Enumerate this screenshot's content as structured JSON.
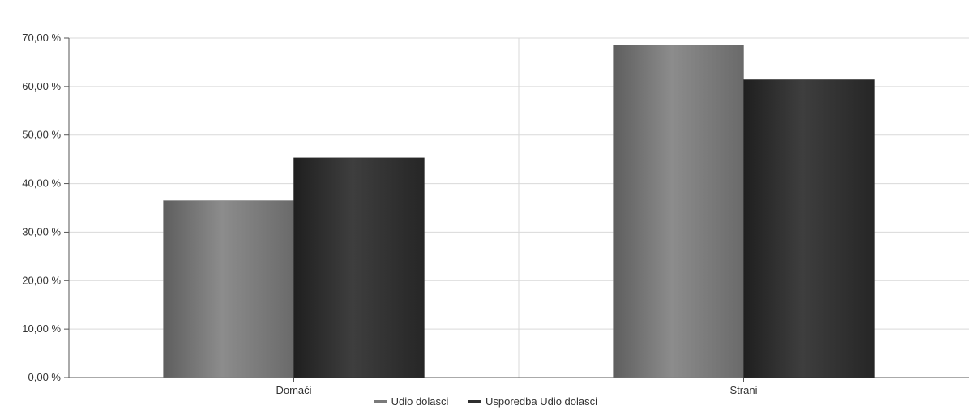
{
  "chart_data": {
    "type": "bar",
    "categories": [
      "Domaći",
      "Strani"
    ],
    "series": [
      {
        "name": "Udio dolasci",
        "values": [
          36.5,
          68.6
        ],
        "color": "#7a7a7a"
      },
      {
        "name": "Usporedba Udio dolasci",
        "values": [
          45.3,
          61.4
        ],
        "color": "#2e2e2e"
      }
    ],
    "ylim": [
      0,
      70
    ],
    "yticks": [
      0,
      10,
      20,
      30,
      40,
      50,
      60,
      70
    ],
    "ytick_labels": [
      "0,00 %",
      "10,00 %",
      "20,00 %",
      "30,00 %",
      "40,00 %",
      "50,00 %",
      "60,00 %",
      "70,00 %"
    ],
    "grid": true,
    "legend_position": "bottom"
  }
}
